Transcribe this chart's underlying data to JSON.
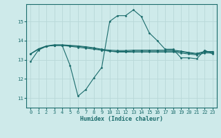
{
  "xlabel": "Humidex (Indice chaleur)",
  "ylabel": "",
  "bg_color": "#ceeaea",
  "grid_color": "#b8d8d8",
  "line_color": "#1a6b6b",
  "xlim": [
    -0.5,
    23.5
  ],
  "ylim": [
    10.5,
    15.9
  ],
  "yticks": [
    11,
    12,
    13,
    14,
    15
  ],
  "xticks": [
    0,
    1,
    2,
    3,
    4,
    5,
    6,
    7,
    8,
    9,
    10,
    11,
    12,
    13,
    14,
    15,
    16,
    17,
    18,
    19,
    20,
    21,
    22,
    23
  ],
  "curves": [
    {
      "x": [
        0,
        1,
        2,
        3,
        4,
        5,
        6,
        7,
        8,
        9,
        10,
        11,
        12,
        13,
        14,
        15,
        16,
        17,
        18,
        19,
        20,
        21,
        22,
        23
      ],
      "y": [
        12.9,
        13.5,
        13.7,
        13.75,
        13.75,
        12.7,
        11.1,
        11.45,
        12.05,
        12.6,
        15.0,
        15.3,
        15.3,
        15.6,
        15.25,
        14.4,
        14.0,
        13.55,
        13.55,
        13.1,
        13.1,
        13.05,
        13.5,
        13.3
      ]
    },
    {
      "x": [
        0,
        1,
        2,
        3,
        4,
        5,
        6,
        7,
        8,
        9,
        10,
        11,
        12,
        13,
        14,
        15,
        16,
        17,
        18,
        19,
        20,
        21,
        22,
        23
      ],
      "y": [
        13.3,
        13.55,
        13.7,
        13.75,
        13.75,
        13.7,
        13.65,
        13.6,
        13.55,
        13.5,
        13.45,
        13.4,
        13.4,
        13.4,
        13.4,
        13.4,
        13.4,
        13.4,
        13.4,
        13.35,
        13.3,
        13.25,
        13.35,
        13.35
      ]
    },
    {
      "x": [
        0,
        1,
        2,
        3,
        4,
        5,
        6,
        7,
        8,
        9,
        10,
        11,
        12,
        13,
        14,
        15,
        16,
        17,
        18,
        19,
        20,
        21,
        22,
        23
      ],
      "y": [
        13.3,
        13.55,
        13.7,
        13.75,
        13.75,
        13.72,
        13.7,
        13.65,
        13.6,
        13.5,
        13.45,
        13.43,
        13.43,
        13.45,
        13.45,
        13.45,
        13.45,
        13.45,
        13.45,
        13.42,
        13.35,
        13.3,
        13.4,
        13.4
      ]
    },
    {
      "x": [
        0,
        1,
        2,
        3,
        4,
        5,
        6,
        7,
        8,
        9,
        10,
        11,
        12,
        13,
        14,
        15,
        16,
        17,
        18,
        19,
        20,
        21,
        22,
        23
      ],
      "y": [
        13.3,
        13.57,
        13.72,
        13.78,
        13.78,
        13.75,
        13.72,
        13.68,
        13.62,
        13.55,
        13.5,
        13.48,
        13.48,
        13.5,
        13.5,
        13.5,
        13.5,
        13.5,
        13.5,
        13.45,
        13.38,
        13.33,
        13.43,
        13.43
      ]
    }
  ]
}
